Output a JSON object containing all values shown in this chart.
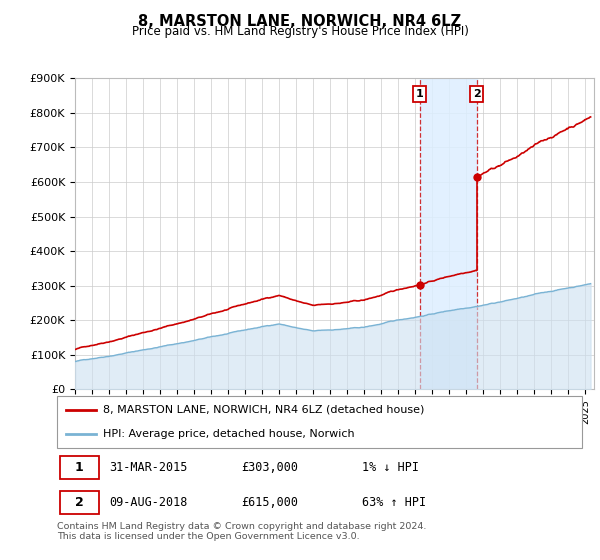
{
  "title": "8, MARSTON LANE, NORWICH, NR4 6LZ",
  "subtitle": "Price paid vs. HM Land Registry's House Price Index (HPI)",
  "ylim": [
    0,
    900000
  ],
  "xlim_start": 1995.0,
  "xlim_end": 2025.5,
  "hpi_fill_color": "#cce0f0",
  "hpi_line_color": "#7ab3d4",
  "price_color": "#cc0000",
  "vline_color": "#cc0000",
  "shade_color": "#ddeeff",
  "purchase1_x": 2015.25,
  "purchase1_y": 303000,
  "purchase2_x": 2018.6,
  "purchase2_y": 615000,
  "legend_label1": "8, MARSTON LANE, NORWICH, NR4 6LZ (detached house)",
  "legend_label2": "HPI: Average price, detached house, Norwich",
  "table_row1": [
    "1",
    "31-MAR-2015",
    "£303,000",
    "1% ↓ HPI"
  ],
  "table_row2": [
    "2",
    "09-AUG-2018",
    "£615,000",
    "63% ↑ HPI"
  ],
  "footer": "Contains HM Land Registry data © Crown copyright and database right 2024.\nThis data is licensed under the Open Government Licence v3.0.",
  "background_color": "#ffffff",
  "grid_color": "#cccccc"
}
